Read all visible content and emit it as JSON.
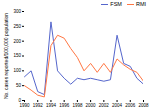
{
  "chart_data": {
    "type": "line",
    "x": [
      1990,
      1991,
      1992,
      1993,
      1994,
      1995,
      1996,
      1997,
      1998,
      1999,
      2000,
      2001,
      2002,
      2003,
      2004,
      2005,
      2006,
      2007,
      2008
    ],
    "series": [
      {
        "name": "FSM",
        "color": "#5566cc",
        "values": [
          80,
          100,
          30,
          20,
          265,
          100,
          75,
          55,
          75,
          70,
          75,
          70,
          65,
          70,
          220,
          125,
          115,
          75,
          55
        ]
      },
      {
        "name": "RMI",
        "color": "#ff7744",
        "values": [
          50,
          35,
          18,
          12,
          185,
          220,
          210,
          175,
          145,
          100,
          125,
          95,
          125,
          95,
          140,
          120,
          105,
          95,
          65
        ]
      }
    ],
    "ylabel": "No. cases reported/100,000 population",
    "xlim": [
      1990,
      2008
    ],
    "xticks": [
      1990,
      1992,
      1994,
      1996,
      1998,
      2000,
      2002,
      2004,
      2006,
      2008
    ],
    "ylim": [
      0,
      300
    ],
    "yticks": [
      0,
      50,
      100,
      150,
      200,
      250,
      300
    ],
    "legend": "upper right"
  }
}
